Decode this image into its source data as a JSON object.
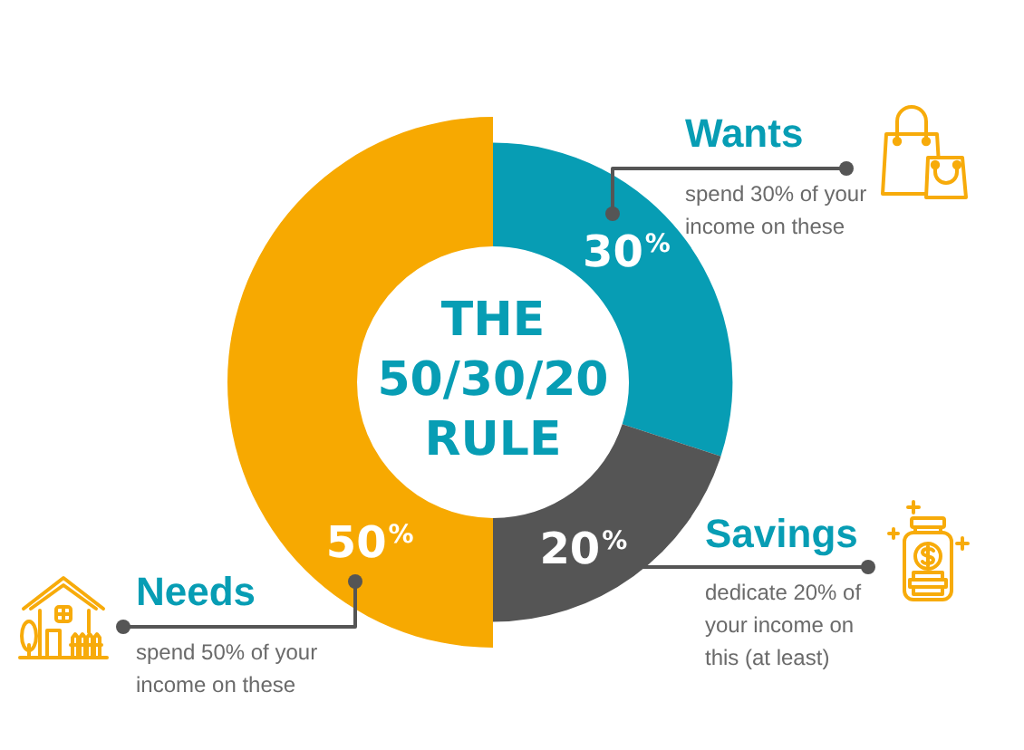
{
  "chart_data": {
    "type": "donut",
    "title": "THE 50/30/20 RULE",
    "categories": [
      "Wants",
      "Savings",
      "Needs"
    ],
    "values": [
      30,
      20,
      50
    ],
    "colors": [
      "#079db4",
      "#555555",
      "#f7a901"
    ],
    "value_labels": [
      "30%",
      "20%",
      "50%"
    ],
    "annotations": [
      "spend 30% of your income on these",
      "dedicate 20% of your income on this (at least)",
      "spend 50% of your income on these"
    ]
  }
}
